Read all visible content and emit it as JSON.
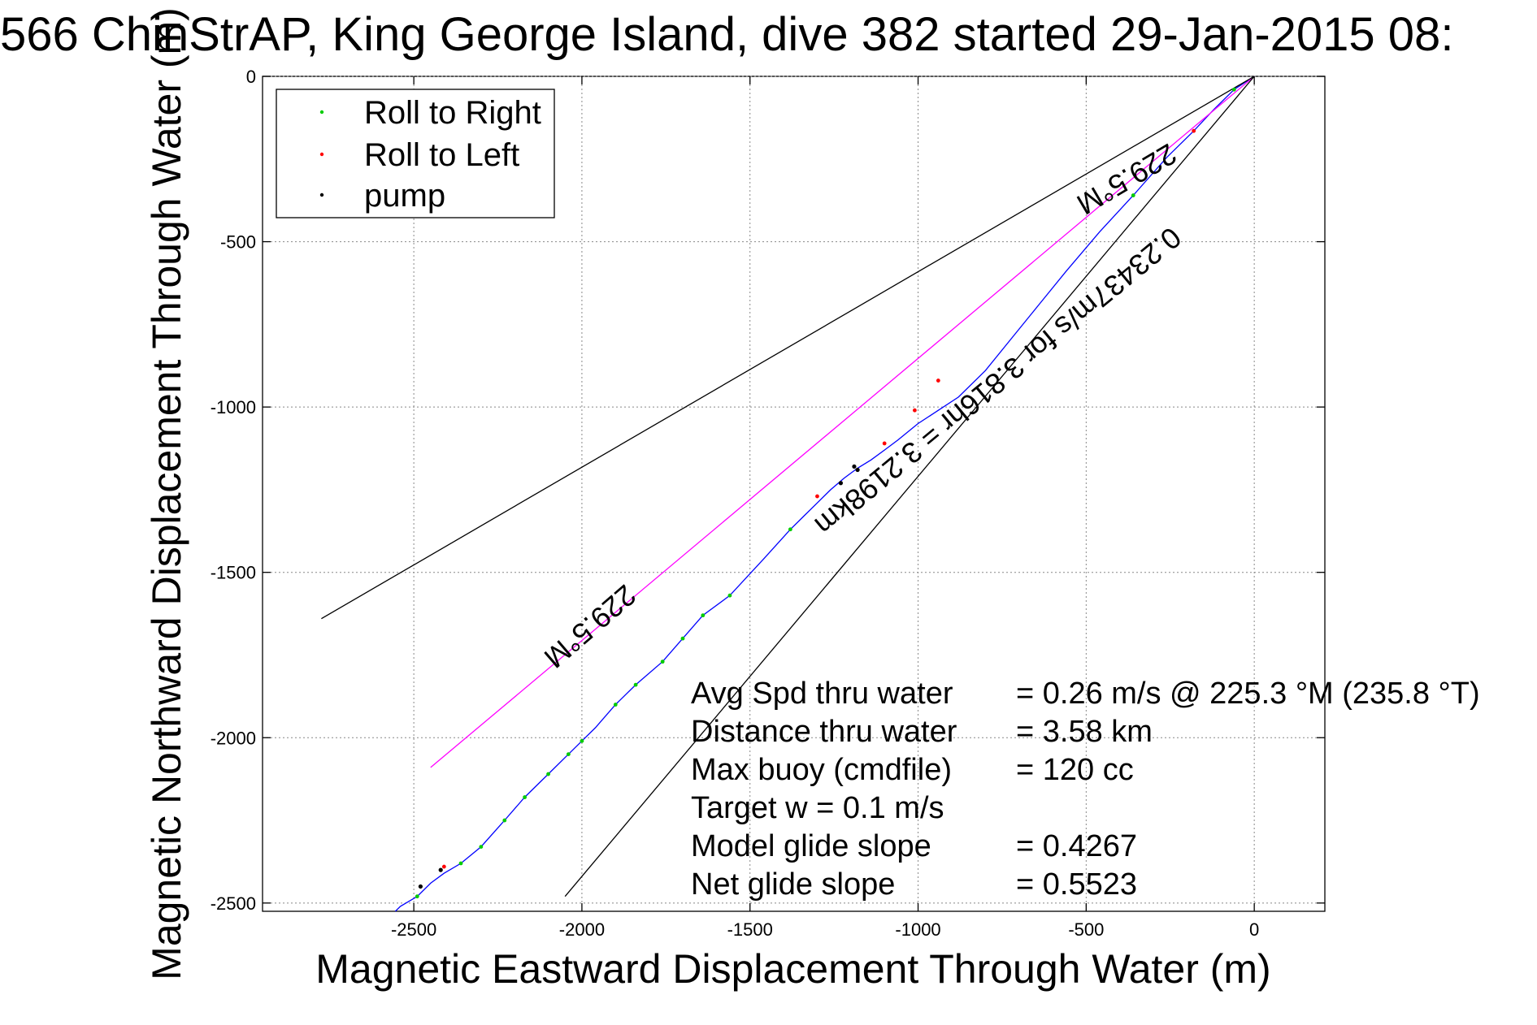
{
  "chart_data": {
    "type": "line",
    "title": "566 ChinStrAP, King George Island, dive 382 started 29-Jan-2015 08:",
    "xlabel": "Magnetic Eastward Displacement Through Water (m)",
    "ylabel": "Magnetic Northward Displacement Through Water (m)",
    "xlim": [
      -2950,
      210
    ],
    "ylim": [
      -2525,
      0
    ],
    "xticks": [
      -2500,
      -2000,
      -1500,
      -1000,
      -500,
      0
    ],
    "yticks": [
      0,
      -500,
      -1000,
      -1500,
      -2000,
      -2500
    ],
    "grid": true,
    "legend_position": "top-left",
    "legend": [
      {
        "label": "Roll to Right",
        "color": "#00cc00"
      },
      {
        "label": "Roll to Left",
        "color": "#ff0000"
      },
      {
        "label": "pump",
        "color": "#000000"
      }
    ],
    "series": [
      {
        "color": "#0000ff",
        "x": [
          0,
          -60,
          -120,
          -180,
          -260,
          -360,
          -460,
          -560,
          -640,
          -720,
          -800,
          -880,
          -940,
          -1000,
          -1060,
          -1100,
          -1140,
          -1180,
          -1220,
          -1260,
          -1300,
          -1340,
          -1380,
          -1460,
          -1560,
          -1640,
          -1700,
          -1760,
          -1840,
          -1900,
          -1960,
          -2000,
          -2040,
          -2100,
          -2170,
          -2230,
          -2300,
          -2360,
          -2410,
          -2450,
          -2490,
          -2540,
          -2555
        ],
        "y": [
          0,
          -40,
          -100,
          -165,
          -245,
          -360,
          -470,
          -590,
          -690,
          -790,
          -890,
          -970,
          -1010,
          -1050,
          -1100,
          -1130,
          -1160,
          -1185,
          -1215,
          -1250,
          -1290,
          -1330,
          -1370,
          -1460,
          -1570,
          -1630,
          -1700,
          -1770,
          -1840,
          -1900,
          -1970,
          -2010,
          -2050,
          -2110,
          -2180,
          -2250,
          -2330,
          -2380,
          -2410,
          -2440,
          -2480,
          -2510,
          -2525
        ]
      },
      {
        "color": "#ff00ff",
        "x": [
          0,
          -2450
        ],
        "y": [
          0,
          -2090
        ]
      },
      {
        "color": "#000000",
        "x": [
          0,
          -2775
        ],
        "y": [
          0,
          -1640
        ]
      },
      {
        "color": "#000000",
        "x": [
          0,
          -2050
        ],
        "y": [
          0,
          -2480
        ]
      }
    ],
    "markers": {
      "roll_right": {
        "x": [
          -60,
          -360,
          -1380,
          -1560,
          -1640,
          -1700,
          -1760,
          -1840,
          -1900,
          -2000,
          -2040,
          -2100,
          -2170,
          -2230,
          -2300,
          -2360,
          -2490
        ],
        "y": [
          -40,
          -360,
          -1370,
          -1570,
          -1630,
          -1700,
          -1770,
          -1840,
          -1900,
          -2010,
          -2050,
          -2110,
          -2180,
          -2250,
          -2330,
          -2380,
          -2480
        ]
      },
      "roll_left": {
        "x": [
          -180,
          -940,
          -1010,
          -1100,
          -1300,
          -2410
        ],
        "y": [
          -165,
          -920,
          -1010,
          -1110,
          -1270,
          -2390
        ]
      },
      "pump": {
        "x": [
          -1180,
          -1190,
          -1230,
          -2420,
          -2480
        ],
        "y": [
          -1190,
          -1180,
          -1230,
          -2400,
          -2450
        ]
      }
    },
    "line_labels": [
      {
        "text": "229.5°M"
      },
      {
        "text": "0.23437m/s for 3.816hr = 3.2198km"
      },
      {
        "text": "229.5°M"
      }
    ],
    "annotations": [
      {
        "label": "Avg Spd thru water",
        "value": "=  0.26 m/s @ 225.3 °M (235.8 °T)"
      },
      {
        "label": "Distance thru water",
        "value": "=  3.58 km"
      },
      {
        "label": "Max buoy (cmdfile)",
        "value": "= 120 cc"
      },
      {
        "label": "Target w    = 0.1 m/s",
        "value": ""
      },
      {
        "label": "Model glide slope",
        "value": "= 0.4267"
      },
      {
        "label": "Net glide slope",
        "value": "= 0.5523"
      }
    ]
  }
}
